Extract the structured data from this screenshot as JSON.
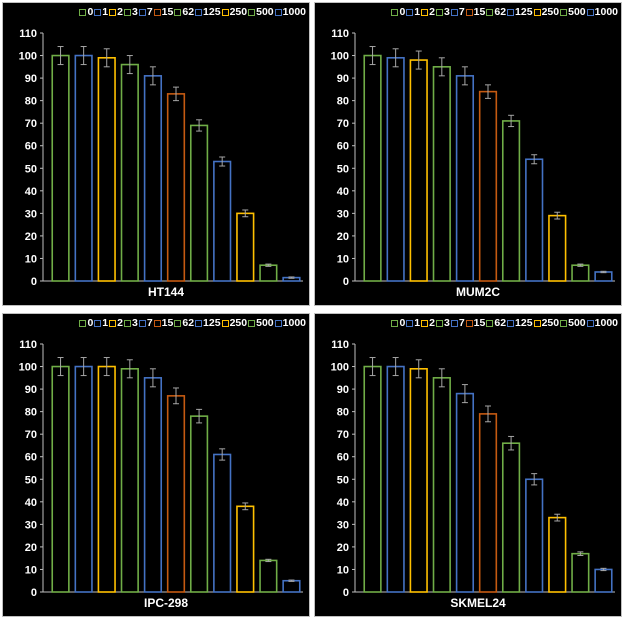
{
  "chart_data": [
    {
      "type": "bar",
      "xlabel": "HT144",
      "categories": [
        "0",
        "1",
        "2",
        "3",
        "7",
        "15",
        "62",
        "125",
        "250",
        "500",
        "1000"
      ],
      "values": [
        100,
        100,
        99,
        96,
        91,
        83,
        69,
        53,
        30,
        7,
        1.5
      ],
      "errors": [
        4,
        4,
        4,
        4,
        4,
        3,
        2.5,
        2,
        1.5,
        0.5,
        0.3
      ],
      "ylim": [
        0,
        110
      ]
    },
    {
      "type": "bar",
      "xlabel": "MUM2C",
      "categories": [
        "0",
        "1",
        "2",
        "3",
        "7",
        "15",
        "62",
        "125",
        "250",
        "500",
        "1000"
      ],
      "values": [
        100,
        99,
        98,
        95,
        91,
        84,
        71,
        54,
        29,
        7,
        4
      ],
      "errors": [
        4,
        4,
        4,
        4,
        4,
        3,
        2.5,
        2,
        1.5,
        0.5,
        0.3
      ],
      "ylim": [
        0,
        110
      ]
    },
    {
      "type": "bar",
      "xlabel": "IPC-298",
      "categories": [
        "0",
        "1",
        "2",
        "3",
        "7",
        "15",
        "62",
        "125",
        "250",
        "500",
        "1000"
      ],
      "values": [
        100,
        100,
        100,
        99,
        95,
        87,
        78,
        61,
        38,
        14,
        5
      ],
      "errors": [
        4,
        4,
        4,
        4,
        4,
        3.5,
        3,
        2.5,
        1.5,
        0.5,
        0.3
      ],
      "ylim": [
        0,
        110
      ]
    },
    {
      "type": "bar",
      "xlabel": "SKMEL24",
      "categories": [
        "0",
        "1",
        "2",
        "3",
        "7",
        "15",
        "62",
        "125",
        "250",
        "500",
        "1000"
      ],
      "values": [
        100,
        100,
        99,
        95,
        88,
        79,
        66,
        50,
        33,
        17,
        10
      ],
      "errors": [
        4,
        4,
        4,
        4,
        4,
        3.5,
        3,
        2.5,
        1.5,
        0.8,
        0.5
      ],
      "ylim": [
        0,
        110
      ]
    }
  ],
  "legend_labels": [
    "0",
    "1",
    "2",
    "3",
    "7",
    "15",
    "62",
    "125",
    "250",
    "500",
    "1000"
  ],
  "colors": {
    "green": "#70ad47",
    "blue": "#4472c4",
    "gold": "#ffc000",
    "orange": "#c55a11",
    "error_bar": "#a6a6a6",
    "axis": "#bfbfbf",
    "background": "#000000"
  },
  "bar_colors": [
    "#70ad47",
    "#4472c4",
    "#ffc000",
    "#70ad47",
    "#4472c4",
    "#c55a11",
    "#70ad47",
    "#4472c4",
    "#ffc000",
    "#70ad47",
    "#4472c4"
  ],
  "y_ticks": [
    0,
    10,
    20,
    30,
    40,
    50,
    60,
    70,
    80,
    90,
    100,
    110
  ]
}
